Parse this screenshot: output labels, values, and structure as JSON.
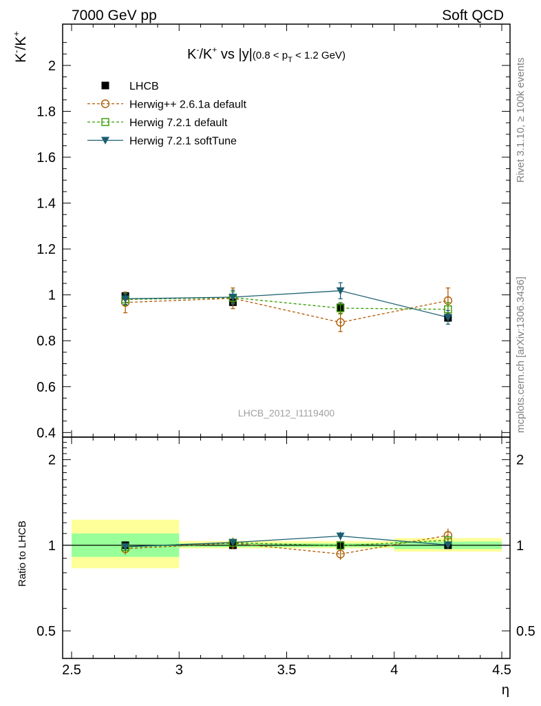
{
  "header": {
    "left": "7000 GeV pp",
    "right": "Soft QCD"
  },
  "side_text": {
    "rivet": "Rivet 3.1.10, ≥ 100k events",
    "source": "mcplots.cern.ch [arXiv:1306.3436]"
  },
  "watermark": "LHCB_2012_I1119400",
  "chart_data": {
    "type": "scatter",
    "title": {
      "main_a": "K",
      "main_sup_a": "-",
      "main_b": "/K",
      "main_sup_b": "+",
      "main_c": " vs |y|",
      "sub_a": "(0.8 < p",
      "sub_sub": "T",
      "sub_b": " < 1.2 GeV)"
    },
    "ylabel": {
      "a": "K",
      "sup_a": "-",
      "b": "/K",
      "sup_b": "+"
    },
    "xlabel": "η",
    "ratio_ylabel": "Ratio to LHCB",
    "xlim": [
      2.5,
      4.5
    ],
    "ylim": [
      0.38,
      2.18
    ],
    "ratio_ylim": [
      0.4,
      2.4
    ],
    "x_ticks": [
      2.5,
      3,
      3.5,
      4,
      4.5
    ],
    "x_tick_labels": [
      "2.5",
      "3",
      "3.5",
      "4",
      "4.5"
    ],
    "y_ticks": [
      0.4,
      0.6,
      0.8,
      1,
      1.2,
      1.4,
      1.6,
      1.8,
      2
    ],
    "y_tick_labels": [
      "0.4",
      "0.6",
      "0.8",
      "1",
      "1.2",
      "1.4",
      "1.6",
      "1.8",
      "2"
    ],
    "ratio_ticks": [
      0.5,
      1,
      2
    ],
    "ratio_tick_labels": [
      "0.5",
      "1",
      "2"
    ],
    "bins": [
      {
        "lo": 2.5,
        "hi": 3.0,
        "stat_lo": 0.91,
        "stat_hi": 1.1,
        "tot_lo": 0.83,
        "tot_hi": 1.23
      },
      {
        "lo": 3.0,
        "hi": 4.0,
        "stat_lo": 0.985,
        "stat_hi": 1.015,
        "tot_lo": 0.975,
        "tot_hi": 1.035
      },
      {
        "lo": 4.0,
        "hi": 4.5,
        "stat_lo": 0.97,
        "stat_hi": 1.03,
        "tot_lo": 0.95,
        "tot_hi": 1.06
      }
    ],
    "series": [
      {
        "name": "LHCB",
        "color": "#000000",
        "marker": "square-filled",
        "line": "none",
        "x": [
          2.75,
          3.25,
          3.75,
          4.25
        ],
        "y": [
          0.995,
          0.968,
          0.945,
          0.9
        ],
        "yerr": [
          0.015,
          0.012,
          0.015,
          0.015
        ]
      },
      {
        "name": "Herwig++ 2.6.1a default",
        "color": "#b05a00",
        "marker": "circle-open",
        "line": "dashed",
        "x": [
          2.75,
          3.25,
          3.75,
          4.25
        ],
        "y": [
          0.967,
          0.985,
          0.88,
          0.975
        ],
        "yerr": [
          0.045,
          0.045,
          0.04,
          0.055
        ]
      },
      {
        "name": "Herwig 7.2.1 default",
        "color": "#339900",
        "marker": "square-open",
        "line": "dashed",
        "x": [
          2.75,
          3.25,
          3.75,
          4.25
        ],
        "y": [
          0.98,
          0.988,
          0.942,
          0.937
        ],
        "yerr": [
          0.025,
          0.025,
          0.025,
          0.03
        ]
      },
      {
        "name": "Herwig 7.2.1 softTune",
        "color": "#1a5e70",
        "marker": "triangle-down-filled",
        "line": "solid",
        "x": [
          2.75,
          3.25,
          3.75,
          4.25
        ],
        "y": [
          0.983,
          0.99,
          1.018,
          0.902
        ],
        "yerr": [
          0.025,
          0.03,
          0.035,
          0.03
        ]
      }
    ]
  }
}
